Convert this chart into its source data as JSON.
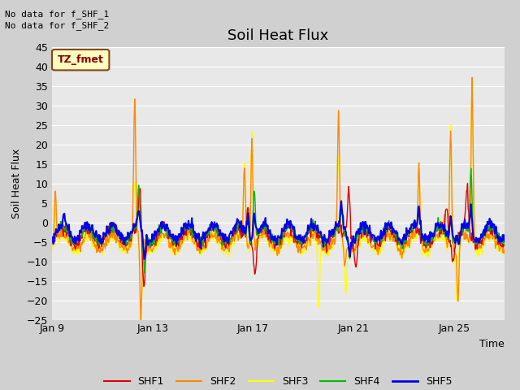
{
  "title": "Soil Heat Flux",
  "ylabel": "Soil Heat Flux",
  "xlabel": "Time",
  "top_left_text1": "No data for f_SHF_1",
  "top_left_text2": "No data for f_SHF_2",
  "tz_label": "TZ_fmet",
  "ylim": [
    -25,
    45
  ],
  "yticks": [
    -25,
    -20,
    -15,
    -10,
    -5,
    0,
    5,
    10,
    15,
    20,
    25,
    30,
    35,
    40,
    45
  ],
  "xtick_positions": [
    0,
    4,
    8,
    12,
    16
  ],
  "xtick_labels": [
    "Jan 9",
    "Jan 13",
    "Jan 17",
    "Jan 21",
    "Jan 25"
  ],
  "xlim": [
    0,
    18
  ],
  "legend_labels": [
    "SHF1",
    "SHF2",
    "SHF3",
    "SHF4",
    "SHF5"
  ],
  "line_colors": [
    "#dd0000",
    "#ff8800",
    "#ffff00",
    "#00bb00",
    "#0000ee"
  ],
  "line_widths": [
    1.0,
    1.0,
    1.0,
    1.0,
    1.5
  ],
  "plot_bg_color": "#e8e8e8",
  "fig_bg_color": "#d0d0d0",
  "grid_color": "#ffffff",
  "title_fontsize": 13,
  "label_fontsize": 9,
  "tick_fontsize": 9,
  "legend_fontsize": 9,
  "tz_box_facecolor": "#ffffc0",
  "tz_box_edgecolor": "#8b4513",
  "tz_text_color": "#8b0000"
}
